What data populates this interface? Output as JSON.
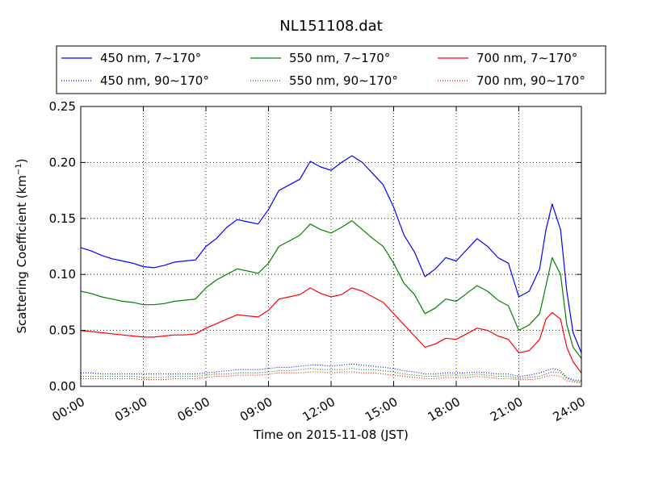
{
  "chart_data": {
    "type": "line",
    "title": "NL151108.dat",
    "xlabel": "Time on 2015-11-08 (JST)",
    "ylabel_main": "Scattering Coefficient (km",
    "ylabel_sup": "−1",
    "ylabel_close": ")",
    "xlim": [
      0,
      24
    ],
    "ylim": [
      0,
      0.25
    ],
    "grid": true,
    "legend_position": "top, above plot, 3 columns",
    "x_tick_values": [
      0,
      3,
      6,
      9,
      12,
      15,
      18,
      21,
      24
    ],
    "x_tick_labels": [
      "00:00",
      "03:00",
      "06:00",
      "09:00",
      "12:00",
      "15:00",
      "18:00",
      "21:00",
      "24:00"
    ],
    "y_tick_values": [
      0,
      0.05,
      0.1,
      0.15,
      0.2,
      0.25
    ],
    "y_tick_labels": [
      "0.00",
      "0.05",
      "0.10",
      "0.15",
      "0.20",
      "0.25"
    ],
    "x_hours": [
      0,
      0.5,
      1,
      1.5,
      2,
      2.5,
      3,
      3.5,
      4,
      4.5,
      5,
      5.5,
      6,
      6.5,
      7,
      7.5,
      8,
      8.5,
      9,
      9.5,
      10,
      10.5,
      11,
      11.5,
      12,
      12.5,
      13,
      13.5,
      14,
      14.5,
      15,
      15.5,
      16,
      16.5,
      17,
      17.5,
      18,
      18.5,
      19,
      19.5,
      20,
      20.5,
      21,
      21.5,
      22,
      22.3,
      22.6,
      23,
      23.3,
      23.6,
      24
    ],
    "series": [
      {
        "name": "450 nm, 7∼170°",
        "color": "#0000ff",
        "style": "solid",
        "values": [
          0.124,
          0.121,
          0.117,
          0.114,
          0.112,
          0.11,
          0.107,
          0.106,
          0.108,
          0.111,
          0.112,
          0.113,
          0.125,
          0.132,
          0.142,
          0.149,
          0.147,
          0.145,
          0.158,
          0.175,
          0.18,
          0.185,
          0.201,
          0.196,
          0.193,
          0.2,
          0.206,
          0.2,
          0.19,
          0.18,
          0.16,
          0.135,
          0.12,
          0.098,
          0.105,
          0.115,
          0.112,
          0.122,
          0.132,
          0.125,
          0.115,
          0.11,
          0.08,
          0.085,
          0.105,
          0.14,
          0.163,
          0.14,
          0.085,
          0.048,
          0.03
        ]
      },
      {
        "name": "550 nm, 7∼170°",
        "color": "#008000",
        "style": "solid",
        "values": [
          0.085,
          0.083,
          0.08,
          0.078,
          0.076,
          0.075,
          0.073,
          0.073,
          0.074,
          0.076,
          0.077,
          0.078,
          0.088,
          0.095,
          0.1,
          0.105,
          0.103,
          0.101,
          0.11,
          0.125,
          0.13,
          0.135,
          0.145,
          0.14,
          0.137,
          0.142,
          0.148,
          0.14,
          0.132,
          0.125,
          0.11,
          0.092,
          0.082,
          0.065,
          0.07,
          0.078,
          0.076,
          0.083,
          0.09,
          0.085,
          0.077,
          0.072,
          0.05,
          0.055,
          0.065,
          0.09,
          0.115,
          0.1,
          0.055,
          0.035,
          0.025
        ]
      },
      {
        "name": "700 nm, 7∼170°",
        "color": "#ff0000",
        "style": "solid",
        "values": [
          0.05,
          0.049,
          0.048,
          0.047,
          0.046,
          0.045,
          0.044,
          0.044,
          0.045,
          0.046,
          0.046,
          0.047,
          0.052,
          0.056,
          0.06,
          0.064,
          0.063,
          0.062,
          0.068,
          0.078,
          0.08,
          0.082,
          0.088,
          0.083,
          0.08,
          0.082,
          0.088,
          0.085,
          0.08,
          0.075,
          0.065,
          0.055,
          0.045,
          0.035,
          0.038,
          0.043,
          0.042,
          0.047,
          0.052,
          0.05,
          0.045,
          0.042,
          0.03,
          0.032,
          0.042,
          0.06,
          0.066,
          0.06,
          0.035,
          0.022,
          0.012
        ]
      },
      {
        "name": "450 nm, 90∼170°",
        "color": "#0000ff",
        "style": "dotted",
        "values": [
          0.012,
          0.012,
          0.011,
          0.011,
          0.011,
          0.011,
          0.011,
          0.011,
          0.011,
          0.011,
          0.011,
          0.011,
          0.012,
          0.013,
          0.014,
          0.015,
          0.015,
          0.015,
          0.016,
          0.017,
          0.017,
          0.018,
          0.019,
          0.019,
          0.018,
          0.019,
          0.02,
          0.019,
          0.018,
          0.017,
          0.016,
          0.014,
          0.013,
          0.011,
          0.011,
          0.012,
          0.012,
          0.012,
          0.013,
          0.012,
          0.011,
          0.011,
          0.009,
          0.01,
          0.012,
          0.014,
          0.016,
          0.014,
          0.008,
          0.006,
          0.005
        ]
      },
      {
        "name": "550 nm, 90∼170°",
        "color": "#008000",
        "style": "dotted",
        "values": [
          0.009,
          0.009,
          0.009,
          0.009,
          0.009,
          0.009,
          0.008,
          0.008,
          0.008,
          0.009,
          0.009,
          0.009,
          0.01,
          0.011,
          0.011,
          0.012,
          0.012,
          0.012,
          0.013,
          0.014,
          0.014,
          0.015,
          0.016,
          0.015,
          0.015,
          0.015,
          0.016,
          0.015,
          0.015,
          0.014,
          0.013,
          0.011,
          0.01,
          0.009,
          0.009,
          0.01,
          0.01,
          0.01,
          0.011,
          0.01,
          0.009,
          0.009,
          0.007,
          0.008,
          0.009,
          0.011,
          0.013,
          0.012,
          0.007,
          0.005,
          0.004
        ]
      },
      {
        "name": "700 nm, 90∼170°",
        "color": "#ff0000",
        "style": "dotted",
        "values": [
          0.007,
          0.007,
          0.007,
          0.007,
          0.007,
          0.007,
          0.006,
          0.006,
          0.006,
          0.007,
          0.007,
          0.007,
          0.008,
          0.009,
          0.009,
          0.01,
          0.01,
          0.01,
          0.011,
          0.012,
          0.012,
          0.012,
          0.013,
          0.013,
          0.012,
          0.013,
          0.013,
          0.012,
          0.012,
          0.011,
          0.01,
          0.009,
          0.008,
          0.007,
          0.007,
          0.008,
          0.008,
          0.008,
          0.009,
          0.008,
          0.007,
          0.007,
          0.006,
          0.006,
          0.007,
          0.009,
          0.01,
          0.009,
          0.005,
          0.004,
          0.003
        ]
      }
    ],
    "legend_order": [
      0,
      1,
      2,
      3,
      4,
      5
    ]
  }
}
